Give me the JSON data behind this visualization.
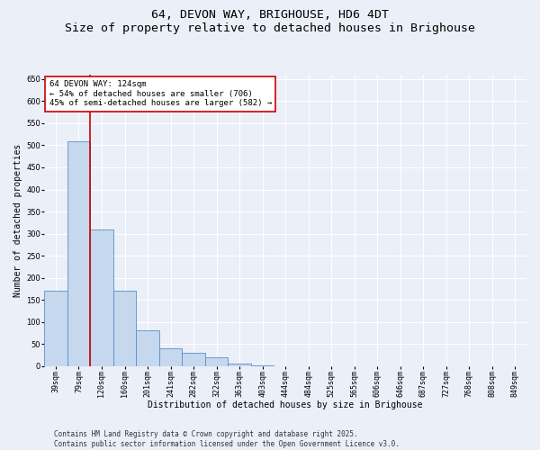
{
  "title": "64, DEVON WAY, BRIGHOUSE, HD6 4DT",
  "subtitle": "Size of property relative to detached houses in Brighouse",
  "xlabel": "Distribution of detached houses by size in Brighouse",
  "ylabel": "Number of detached properties",
  "categories": [
    "39sqm",
    "79sqm",
    "120sqm",
    "160sqm",
    "201sqm",
    "241sqm",
    "282sqm",
    "322sqm",
    "363sqm",
    "403sqm",
    "444sqm",
    "484sqm",
    "525sqm",
    "565sqm",
    "606sqm",
    "646sqm",
    "687sqm",
    "727sqm",
    "768sqm",
    "808sqm",
    "849sqm"
  ],
  "values": [
    170,
    510,
    310,
    170,
    80,
    40,
    30,
    20,
    5,
    2,
    0,
    0,
    0,
    0,
    0,
    0,
    0,
    0,
    0,
    0,
    0
  ],
  "bar_color": "#c5d8ee",
  "bar_edge_color": "#5b8ec4",
  "background_color": "#eaeff8",
  "grid_color": "#ffffff",
  "vline_color": "#cc0000",
  "vline_position": 1.5,
  "annotation_text": "64 DEVON WAY: 124sqm\n← 54% of detached houses are smaller (706)\n45% of semi-detached houses are larger (582) →",
  "annotation_box_color": "#cc0000",
  "ylim": [
    0,
    660
  ],
  "yticks": [
    0,
    50,
    100,
    150,
    200,
    250,
    300,
    350,
    400,
    450,
    500,
    550,
    600,
    650
  ],
  "footer_line1": "Contains HM Land Registry data © Crown copyright and database right 2025.",
  "footer_line2": "Contains public sector information licensed under the Open Government Licence v3.0.",
  "title_fontsize": 9.5,
  "xlabel_fontsize": 7,
  "ylabel_fontsize": 7,
  "tick_fontsize": 6,
  "annotation_fontsize": 6.5,
  "footer_fontsize": 5.5
}
